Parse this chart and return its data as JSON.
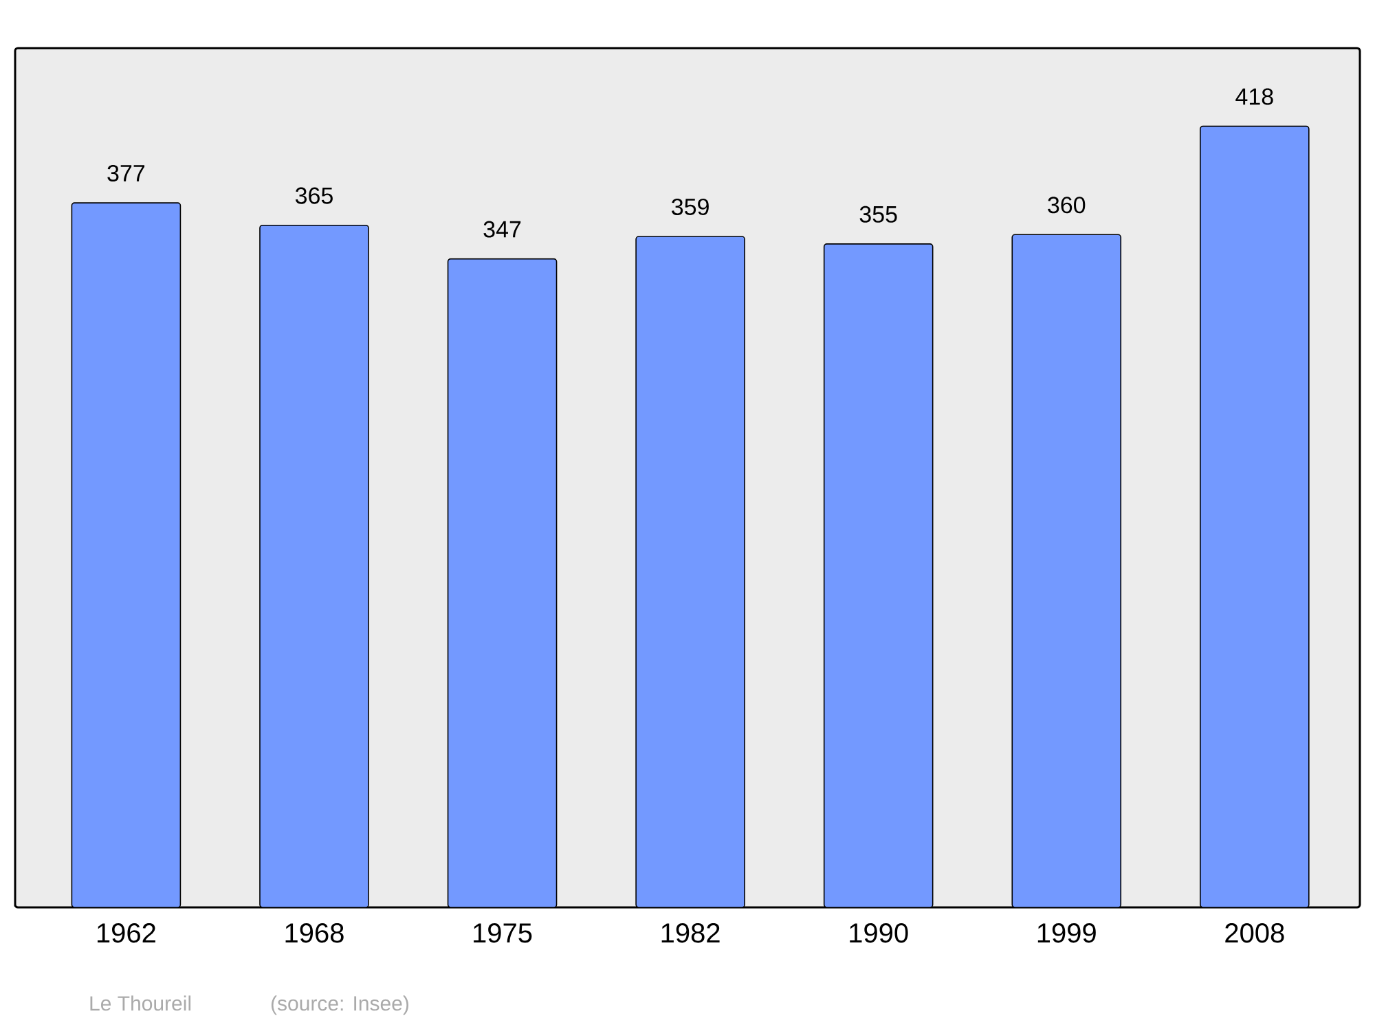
{
  "chart_data": {
    "type": "bar",
    "categories": [
      "1962",
      "1968",
      "1975",
      "1982",
      "1990",
      "1999",
      "2008"
    ],
    "values": [
      377,
      365,
      347,
      359,
      355,
      360,
      418
    ],
    "color": "#7399ff",
    "data_labels": true,
    "annotations": [
      "Le Thoureil",
      "(source: Insee)"
    ]
  }
}
